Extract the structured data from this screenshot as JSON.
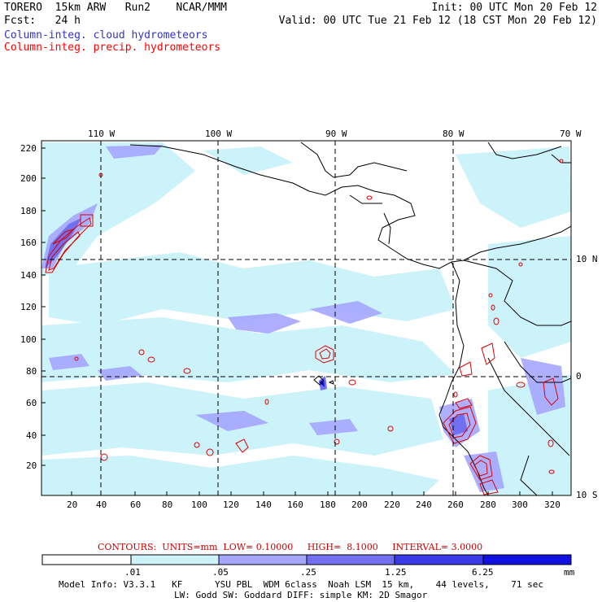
{
  "header": {
    "left_line1": "TORERO  15km ARW   Run2    NCAR/MMM",
    "left_line2": "Fcst:   24 h",
    "right_line1": "Init: 00 UTC Mon 20 Feb 12",
    "right_line2": "Valid: 00 UTC Tue 21 Feb 12 (18 CST Mon 20 Feb 12)",
    "legend_cloud": "Column-integ. cloud hydrometeors",
    "legend_precip": "Column-integ. precip. hydrometeors",
    "legend_cloud_color": "#3333cc",
    "legend_precip_color": "#ff0000"
  },
  "map": {
    "top_lon_labels": [
      "110 W",
      "100 W",
      "90 W",
      "80 W",
      "70 W"
    ],
    "right_lat_labels": [
      "10 N",
      "0",
      "10 S"
    ],
    "left_y_ticks": [
      "220",
      "200",
      "180",
      "160",
      "140",
      "120",
      "100",
      "80",
      "60",
      "40",
      "20"
    ],
    "bottom_x_ticks": [
      "20",
      "40",
      "60",
      "80",
      "100",
      "120",
      "140",
      "160",
      "180",
      "200",
      "220",
      "240",
      "260",
      "280",
      "300",
      "320"
    ]
  },
  "contours_info": {
    "text": "CONTOURS:  UNITS=mm  LOW= 0.10000     HIGH=  8.1000     INTERVAL= 3.0000",
    "color": "#cc0000"
  },
  "colorbar": {
    "labels": [
      ".01",
      ".05",
      ".25",
      "1.25",
      "6.25"
    ],
    "unit": "mm",
    "colors": [
      "#ffffff",
      "#ccf2fa",
      "#a6a6ff",
      "#7070f0",
      "#3a3ae8",
      "#1010e0"
    ]
  },
  "footer": {
    "line1": "Model Info: V3.3.1   KF      YSU PBL  WDM 6class  Noah LSM  15 km,    44 levels,    71 sec",
    "line2": "LW: Godd SW: Goddard DIFF: simple KM: 2D Smagor"
  }
}
